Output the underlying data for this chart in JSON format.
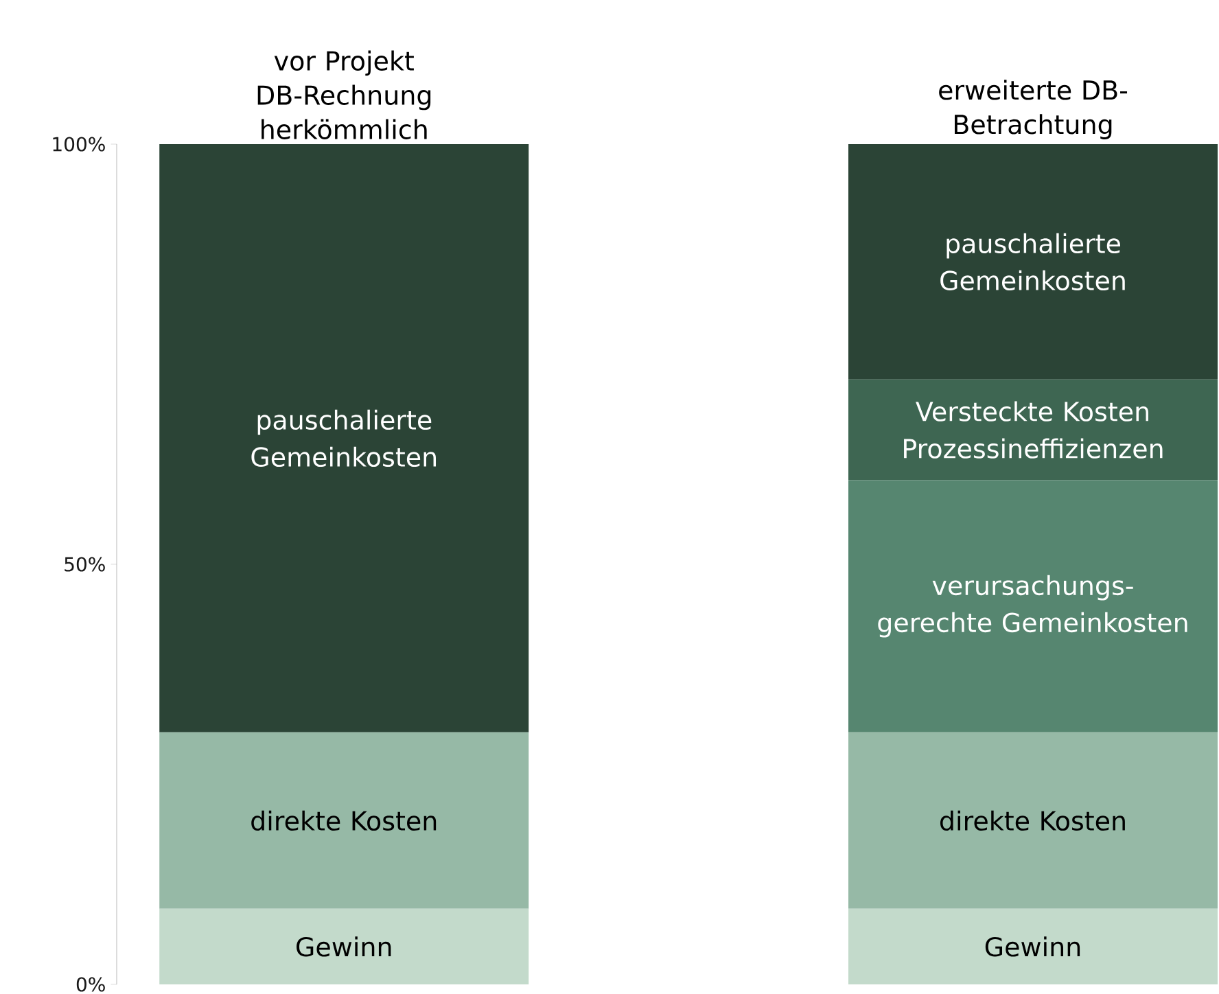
{
  "chart_data": {
    "type": "bar",
    "stacked": true,
    "categories": [
      "vor Projekt DB-Rechnung herkömmlich",
      "erweiterte DB-Betrachtung"
    ],
    "series": [
      {
        "name": "Gewinn",
        "color": "#c3dacb",
        "values": [
          9,
          9
        ]
      },
      {
        "name": "direkte Kosten",
        "color": "#96b9a6",
        "values": [
          21,
          21
        ]
      },
      {
        "name": "verursachungs-gerechte Gemeinkosten",
        "color": "#568670",
        "values": [
          null,
          30
        ]
      },
      {
        "name": "Versteckte Kosten Prozessineffizienzen",
        "color": "#3e6652",
        "values": [
          null,
          12
        ]
      },
      {
        "name": "pauschalierte Gemeinkosten",
        "color": "#2b4436",
        "values": [
          70,
          28
        ]
      }
    ],
    "ylim": [
      0,
      100
    ],
    "yticks": [
      {
        "value": 0,
        "label": "0%"
      },
      {
        "value": 50,
        "label": "50%"
      },
      {
        "value": 100,
        "label": "100%"
      }
    ]
  }
}
